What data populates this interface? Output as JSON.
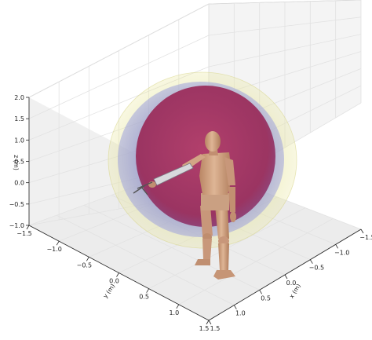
{
  "chart_data": {
    "type": "3d-surface",
    "title": "",
    "xlabel": "x (m)",
    "ylabel": "y (m)",
    "zlabel": "z (m)",
    "x_ticks": [
      "−1.5",
      "−1.0",
      "−0.5",
      "0.0",
      "0.5",
      "1.0",
      "1.5"
    ],
    "y_ticks": [
      "−1.5",
      "−1.0",
      "−0.5",
      "0.0",
      "0.5",
      "1.0",
      "1.5"
    ],
    "z_ticks": [
      "−1.0",
      "−0.5",
      "0.0",
      "0.5",
      "1.0",
      "1.5",
      "2.0"
    ],
    "xlim": [
      -1.5,
      1.5
    ],
    "ylim": [
      -1.5,
      1.5
    ],
    "zlim": [
      -1.0,
      2.0
    ],
    "grid": true,
    "surfaces": [
      {
        "shape": "sphere",
        "color": "#e7e59a"
      },
      {
        "shape": "sphere",
        "color": "#8f92d6"
      },
      {
        "shape": "sphere",
        "color": "#a3325f"
      }
    ],
    "figure": "wooden-mannequin",
    "figure_color": "#cfa07f"
  }
}
